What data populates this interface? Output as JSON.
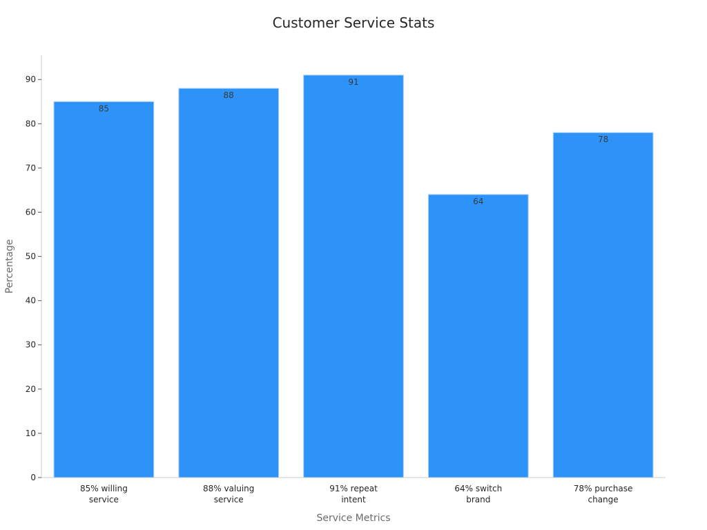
{
  "chart_data": {
    "type": "bar",
    "title": "Customer Service Stats",
    "xlabel": "Service Metrics",
    "ylabel": "Percentage",
    "categories": [
      [
        "85% willing",
        "service"
      ],
      [
        "88% valuing",
        "service"
      ],
      [
        "91% repeat",
        "intent"
      ],
      [
        "64% switch",
        "brand"
      ],
      [
        "78% purchase",
        "change"
      ]
    ],
    "values": [
      85,
      88,
      91,
      64,
      78
    ],
    "ylim": [
      0,
      95.5
    ],
    "yticks": [
      0,
      10,
      20,
      30,
      40,
      50,
      60,
      70,
      80,
      90
    ],
    "bar_color": "#2e93f8",
    "bar_edge_color": "#a9cff8",
    "grid": false,
    "legend": "none"
  }
}
